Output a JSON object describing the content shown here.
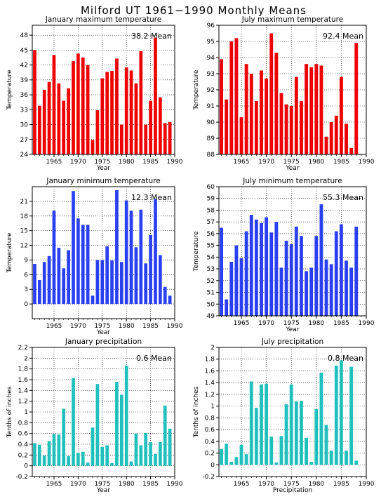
{
  "title": "Milford UT   1961−1990  Monthly Means",
  "colors": {
    "red": "#ee0000",
    "blue": "#2a3ff0",
    "teal": "#20c0bd"
  },
  "chart_data": [
    {
      "type": "bar",
      "title": "January maximum temperature",
      "xlabel": "Year",
      "ylabel": "Temperature",
      "mean_label": "38.2  Mean",
      "color": "red",
      "xlim": [
        1960.5,
        1990
      ],
      "ylim": [
        24,
        50
      ],
      "yticks": [
        "24",
        "27",
        "30",
        "33",
        "36",
        "39",
        "42",
        "45",
        "48"
      ],
      "xticks": [
        "1965",
        "1970",
        "1975",
        "1980",
        "1985",
        "1990"
      ],
      "x": [
        1961,
        1962,
        1963,
        1964,
        1965,
        1966,
        1967,
        1968,
        1969,
        1970,
        1971,
        1972,
        1973,
        1974,
        1975,
        1976,
        1977,
        1978,
        1979,
        1980,
        1981,
        1982,
        1983,
        1984,
        1985,
        1986,
        1987,
        1988,
        1989
      ],
      "values": [
        45.0,
        33.8,
        37.0,
        38.6,
        44.0,
        38.3,
        34.8,
        37.3,
        42.8,
        44.3,
        43.5,
        42.0,
        26.9,
        32.9,
        39.3,
        40.6,
        40.8,
        43.3,
        30.0,
        41.5,
        40.9,
        38.3,
        44.8,
        30.0,
        34.8,
        47.5,
        35.5,
        30.3,
        30.5
      ]
    },
    {
      "type": "bar",
      "title": "July maximum temperature",
      "xlabel": "Year",
      "ylabel": "Temperature",
      "mean_label": "92.4  Mean",
      "color": "red",
      "xlim": [
        1960.5,
        1990
      ],
      "ylim": [
        88,
        96
      ],
      "yticks": [
        "88",
        "89",
        "90",
        "91",
        "92",
        "93",
        "94",
        "95",
        "96"
      ],
      "xticks": [
        "1965",
        "1970",
        "1975",
        "1980",
        "1985",
        "1990"
      ],
      "x": [
        1961,
        1962,
        1963,
        1964,
        1965,
        1966,
        1967,
        1968,
        1969,
        1970,
        1971,
        1972,
        1973,
        1974,
        1975,
        1976,
        1977,
        1978,
        1979,
        1980,
        1981,
        1982,
        1983,
        1984,
        1985,
        1986,
        1987,
        1988
      ],
      "values": [
        93.9,
        91.4,
        95.0,
        95.2,
        90.3,
        93.6,
        93.0,
        91.3,
        93.2,
        92.7,
        95.5,
        94.3,
        91.8,
        91.1,
        91.0,
        92.8,
        91.3,
        93.6,
        93.4,
        93.6,
        93.5,
        89.1,
        90.0,
        90.4,
        92.8,
        89.9,
        88.4,
        94.9
      ]
    },
    {
      "type": "bar",
      "title": "January minimum temperature",
      "xlabel": "Year",
      "ylabel": "Temperature",
      "mean_label": "12.3  Mean",
      "color": "blue",
      "xlim": [
        1960.5,
        1990
      ],
      "ylim": [
        -3,
        24
      ],
      "yticks": [
        "0",
        "3",
        "6",
        "9",
        "12",
        "15",
        "18",
        "21"
      ],
      "ytick_values": [
        0,
        3,
        6,
        9,
        12,
        15,
        18,
        21
      ],
      "xticks": [
        "1965",
        "1970",
        "1975",
        "1980",
        "1985",
        "1990"
      ],
      "x": [
        1961,
        1962,
        1963,
        1964,
        1965,
        1966,
        1967,
        1968,
        1969,
        1970,
        1971,
        1972,
        1973,
        1974,
        1975,
        1976,
        1977,
        1978,
        1979,
        1980,
        1981,
        1982,
        1983,
        1984,
        1985,
        1986,
        1987,
        1988,
        1989
      ],
      "values": [
        8.2,
        4.9,
        8.6,
        9.8,
        19.1,
        11.5,
        7.3,
        11.0,
        23.1,
        17.5,
        16.2,
        16.2,
        1.7,
        9.0,
        9.0,
        11.8,
        8.9,
        23.3,
        8.6,
        21.2,
        19.1,
        11.6,
        19.3,
        8.3,
        14.1,
        21.5,
        10.0,
        3.5,
        1.7
      ]
    },
    {
      "type": "bar",
      "title": "July minimum temperature",
      "xlabel": "Year",
      "ylabel": "Temperature",
      "mean_label": "55.3  Mean",
      "color": "blue",
      "xlim": [
        1960.5,
        1990
      ],
      "ylim": [
        49,
        60
      ],
      "yticks": [
        "49",
        "50",
        "51",
        "52",
        "53",
        "54",
        "55",
        "56",
        "57",
        "58",
        "59",
        "60"
      ],
      "xticks": [
        "1965",
        "1970",
        "1975",
        "1980",
        "1985",
        "1990"
      ],
      "x": [
        1961,
        1962,
        1963,
        1964,
        1965,
        1966,
        1967,
        1968,
        1969,
        1970,
        1971,
        1972,
        1973,
        1974,
        1975,
        1976,
        1977,
        1978,
        1979,
        1980,
        1981,
        1982,
        1983,
        1984,
        1985,
        1986,
        1987,
        1988
      ],
      "values": [
        56.5,
        50.4,
        53.6,
        55.0,
        53.9,
        56.2,
        57.6,
        57.2,
        56.9,
        57.4,
        56.1,
        57.0,
        53.1,
        55.4,
        55.1,
        56.6,
        55.8,
        52.8,
        53.1,
        55.8,
        58.5,
        53.8,
        53.4,
        56.2,
        56.8,
        53.7,
        53.1,
        56.6
      ]
    },
    {
      "type": "bar",
      "title": "January precipitation",
      "xlabel": "Year",
      "ylabel": "Tenths of inches",
      "mean_label": "0.6  Mean",
      "color": "teal",
      "xlim": [
        1960.5,
        1990
      ],
      "ylim": [
        -0.2,
        2.2
      ],
      "yticks": [
        "-0.2",
        "0",
        "0.2",
        "0.4",
        "0.6",
        "0.8",
        "1",
        "1.2",
        "1.4",
        "1.6",
        "1.8",
        "2",
        "2.2"
      ],
      "xticks": [
        "1965",
        "1970",
        "1975",
        "1980",
        "1985",
        "1990"
      ],
      "x": [
        1961,
        1962,
        1963,
        1964,
        1965,
        1966,
        1967,
        1968,
        1969,
        1970,
        1971,
        1972,
        1973,
        1974,
        1975,
        1976,
        1977,
        1978,
        1979,
        1980,
        1981,
        1982,
        1983,
        1984,
        1985,
        1986,
        1987,
        1988,
        1989
      ],
      "values": [
        0.42,
        0.39,
        0.19,
        0.46,
        0.59,
        0.58,
        1.06,
        0.18,
        1.63,
        0.24,
        0.26,
        0.06,
        0.71,
        1.52,
        0.35,
        0.38,
        0.05,
        1.56,
        1.32,
        1.86,
        0.08,
        0.6,
        0.38,
        0.61,
        0.44,
        0.22,
        0.44,
        1.12,
        0.69
      ]
    },
    {
      "type": "bar",
      "title": "July precipitation",
      "xlabel": "Precipitation",
      "ylabel": "Tenths of inches",
      "mean_label": "0.8  Mean",
      "color": "teal",
      "xlim": [
        1960.5,
        1990
      ],
      "ylim": [
        -0.2,
        2.0
      ],
      "yticks": [
        "-0.2",
        "0",
        "0.2",
        "0.4",
        "0.6",
        "0.8",
        "1",
        "1.2",
        "1.4",
        "1.6",
        "1.8",
        "2"
      ],
      "xticks": [
        "1965",
        "1970",
        "1975",
        "1980",
        "1985",
        "1990"
      ],
      "x": [
        1961,
        1962,
        1963,
        1964,
        1965,
        1966,
        1967,
        1968,
        1969,
        1970,
        1971,
        1972,
        1973,
        1974,
        1975,
        1976,
        1977,
        1978,
        1979,
        1980,
        1981,
        1982,
        1983,
        1984,
        1985,
        1986,
        1987,
        1988
      ],
      "values": [
        0.27,
        0.36,
        0.05,
        0.13,
        0.34,
        0.18,
        1.42,
        0.97,
        1.37,
        1.38,
        0.48,
        0.04,
        0.49,
        1.03,
        1.37,
        1.08,
        1.09,
        0.46,
        0.05,
        0.95,
        1.57,
        0.68,
        0.24,
        1.69,
        1.78,
        0.24,
        1.67,
        0.07
      ]
    }
  ]
}
